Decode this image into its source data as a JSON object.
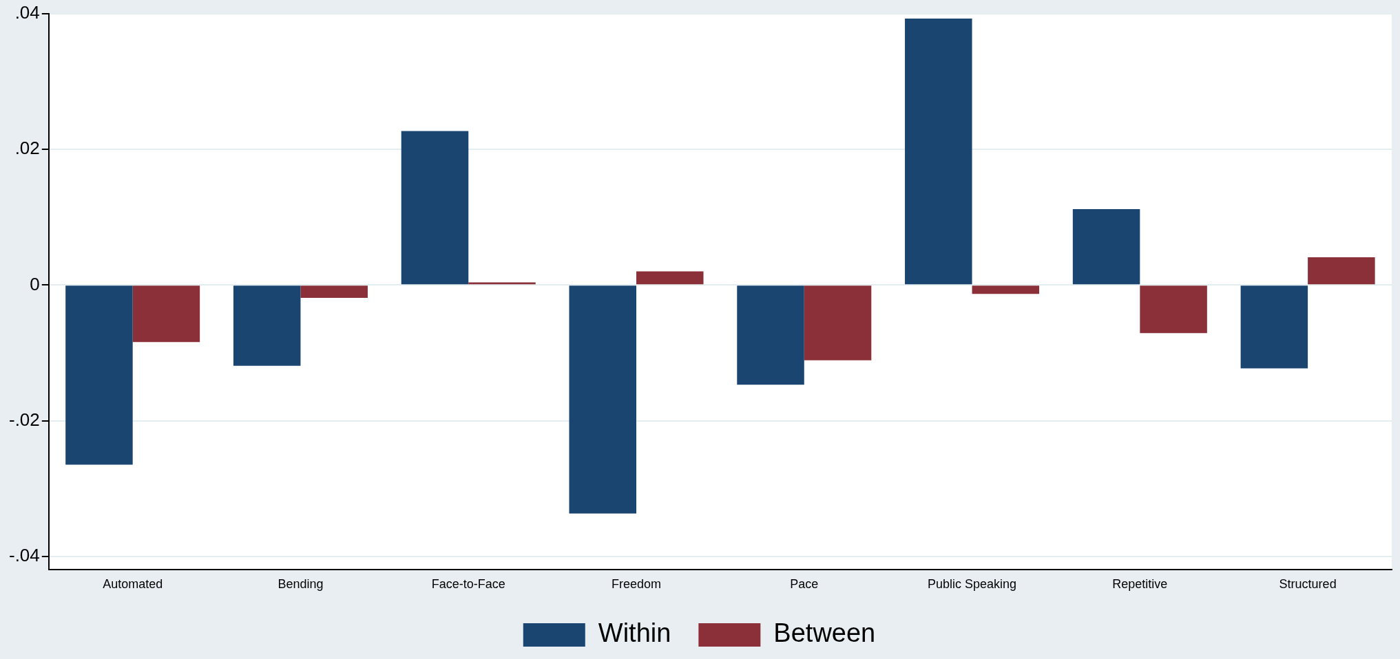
{
  "chart_data": {
    "type": "bar",
    "categories": [
      "Automated",
      "Bending",
      "Face-to-Face",
      "Freedom",
      "Pace",
      "Public Speaking",
      "Repetitive",
      "Structured"
    ],
    "series": [
      {
        "name": "Within",
        "color": "#1a4570",
        "values": [
          -0.0265,
          -0.0119,
          0.0227,
          -0.0337,
          -0.0147,
          0.0393,
          0.0112,
          -0.0123
        ]
      },
      {
        "name": "Between",
        "color": "#8b3038",
        "values": [
          -0.0084,
          -0.0019,
          0.0004,
          0.002,
          -0.0111,
          -0.0013,
          -0.0071,
          0.0041
        ]
      }
    ],
    "ylim": [
      -0.042,
      0.04
    ],
    "yticks": [
      {
        "value": -0.04,
        "label": "-.04"
      },
      {
        "value": -0.02,
        "label": "-.02"
      },
      0,
      {
        "value": 0.02,
        "label": ".02"
      },
      {
        "value": 0.04,
        "label": ".04"
      }
    ],
    "grid": "y",
    "legend": "bottom"
  }
}
